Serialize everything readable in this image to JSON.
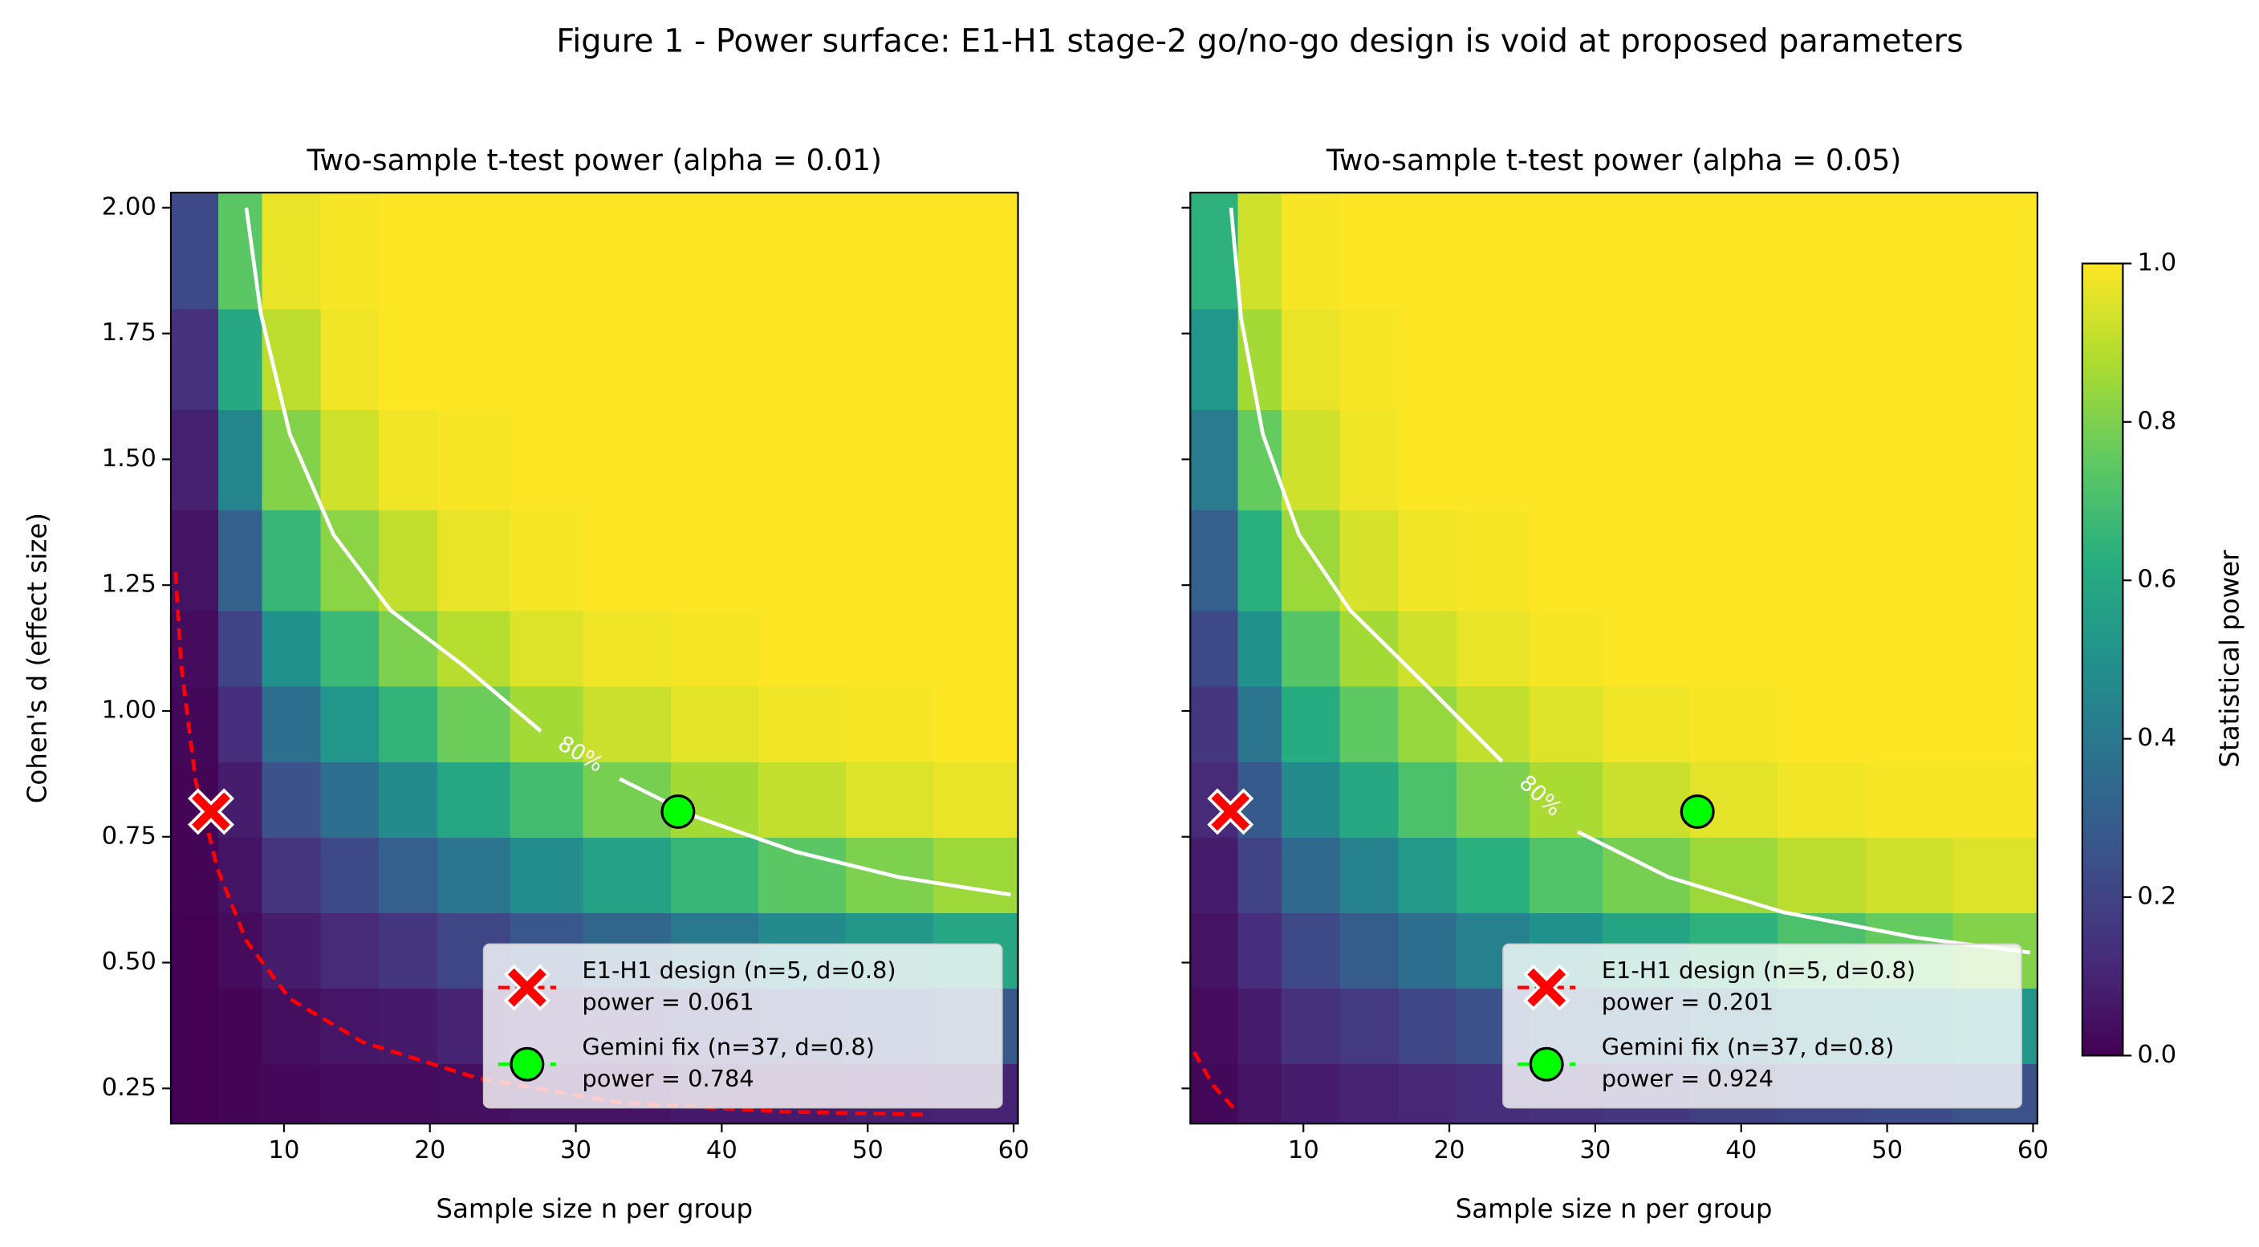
{
  "title": "Figure 1 - Power surface: E1-H1 stage-2 go/no-go design is void at proposed parameters",
  "colorbar": {
    "label": "Statistical power",
    "clim": [
      0,
      1
    ],
    "ticks": [
      {
        "value": 0,
        "label": "0.0"
      },
      {
        "value": 0.2,
        "label": "0.2"
      },
      {
        "value": 0.4,
        "label": "0.4"
      },
      {
        "value": 0.6,
        "label": "0.6"
      },
      {
        "value": 0.8,
        "label": "0.8"
      },
      {
        "value": 1,
        "label": "1.0"
      }
    ],
    "colors": [
      "#440154",
      "#472d7b",
      "#3b528b",
      "#2c728e",
      "#21918c",
      "#28ae80",
      "#5ec962",
      "#addc30",
      "#fde725"
    ]
  },
  "chart_data": [
    {
      "type": "heatmap",
      "title": "Two-sample t-test power  (alpha = 0.01)",
      "x_label": "Sample size n per group",
      "y_label": "Cohen's d (effect size)",
      "xlim": [
        2.25,
        60.3
      ],
      "ylim": [
        0.18,
        2.03
      ],
      "xticks": [
        10,
        20,
        30,
        40,
        50,
        60
      ],
      "yticks": [
        0.25,
        {
          "value": 0.5,
          "label": "0.50"
        },
        0.75,
        {
          "value": 1,
          "label": "1.00"
        },
        1.25,
        {
          "value": 1.5,
          "label": "1.50"
        },
        1.75,
        {
          "value": 2,
          "label": "2.00"
        }
      ],
      "show_ytick_labels": true,
      "x_edges": [
        2.25,
        5.5,
        8.5,
        12.5,
        16.5,
        20.5,
        25.5,
        30.5,
        36.5,
        42.5,
        48.5,
        54.5,
        60.3
      ],
      "y_edges": [
        0.18,
        0.3,
        0.45,
        0.6,
        0.75,
        0.9,
        1.05,
        1.2,
        1.4,
        1.6,
        1.8,
        2.03
      ],
      "values": [
        [
          0.0,
          0.01,
          0.02,
          0.03,
          0.03,
          0.04,
          0.05,
          0.05,
          0.07,
          0.07,
          0.09,
          0.1
        ],
        [
          0.0,
          0.01,
          0.04,
          0.06,
          0.07,
          0.1,
          0.12,
          0.15,
          0.18,
          0.21,
          0.25,
          0.28
        ],
        [
          0.0,
          0.03,
          0.08,
          0.12,
          0.16,
          0.21,
          0.27,
          0.33,
          0.4,
          0.47,
          0.53,
          0.59
        ],
        [
          0.01,
          0.05,
          0.15,
          0.22,
          0.3,
          0.39,
          0.48,
          0.57,
          0.66,
          0.74,
          0.8,
          0.85
        ],
        [
          0.01,
          0.08,
          0.25,
          0.36,
          0.47,
          0.59,
          0.69,
          0.79,
          0.86,
          0.91,
          0.95,
          0.97
        ],
        [
          0.02,
          0.13,
          0.36,
          0.52,
          0.65,
          0.77,
          0.86,
          0.92,
          0.96,
          0.98,
          0.99,
          1.0
        ],
        [
          0.03,
          0.2,
          0.5,
          0.67,
          0.8,
          0.89,
          0.95,
          0.98,
          0.99,
          1.0,
          1.0,
          1.0
        ],
        [
          0.05,
          0.31,
          0.66,
          0.82,
          0.91,
          0.97,
          0.99,
          1.0,
          1.0,
          1.0,
          1.0,
          1.0
        ],
        [
          0.09,
          0.45,
          0.81,
          0.93,
          0.98,
          0.99,
          1.0,
          1.0,
          1.0,
          1.0,
          1.0,
          1.0
        ],
        [
          0.14,
          0.6,
          0.9,
          0.98,
          1.0,
          1.0,
          1.0,
          1.0,
          1.0,
          1.0,
          1.0,
          1.0
        ],
        [
          0.22,
          0.74,
          0.97,
          0.99,
          1.0,
          1.0,
          1.0,
          1.0,
          1.0,
          1.0,
          1.0,
          1.0
        ]
      ],
      "lines": [
        {
          "label": "80%",
          "color": "#ffffff",
          "dashed": false,
          "x": [
            7.42,
            8.41,
            10.4,
            13.4,
            17.3,
            22.3,
            27.6,
            null,
            33.0,
            38.2,
            45.1,
            52.1,
            59.8
          ],
          "y": [
            2.0,
            1.79,
            1.55,
            1.35,
            1.2,
            1.09,
            0.96,
            null,
            0.865,
            0.79,
            0.72,
            0.67,
            0.635
          ]
        },
        {
          "color": "#ff0000",
          "dashed": true,
          "x": [
            2.56,
            2.96,
            3.95,
            5.44,
            7.42,
            10.4,
            15.4,
            23.3,
            33.2,
            44.1,
            54.0
          ],
          "y": [
            1.276,
            1.09,
            0.86,
            0.687,
            0.543,
            0.428,
            0.342,
            0.27,
            0.221,
            0.204,
            0.198
          ]
        }
      ],
      "points": [
        {
          "name": "E1-H1 design (n=5, d=0.8)",
          "power_label": "power = 0.061",
          "x": 5,
          "y": 0.8,
          "color": "#ff0000",
          "marker": "x"
        },
        {
          "name": "Gemini fix (n=37, d=0.8)",
          "power_label": "power = 0.784",
          "x": 37,
          "y": 0.8,
          "color": "#00ff00",
          "marker": "o"
        }
      ]
    },
    {
      "type": "heatmap",
      "title": "Two-sample t-test power  (alpha = 0.05)",
      "x_label": "Sample size n per group",
      "xlim": [
        2.25,
        60.3
      ],
      "ylim": [
        0.18,
        2.03
      ],
      "xticks": [
        10,
        20,
        30,
        40,
        50,
        60
      ],
      "yticks": [
        0.25,
        0.5,
        0.75,
        1,
        1.25,
        1.5,
        1.75,
        2
      ],
      "show_ytick_labels": false,
      "x_edges": [
        2.25,
        5.5,
        8.5,
        12.5,
        16.5,
        20.5,
        25.5,
        30.5,
        36.5,
        42.5,
        48.5,
        54.5,
        60.3
      ],
      "y_edges": [
        0.18,
        0.3,
        0.45,
        0.6,
        0.75,
        0.9,
        1.05,
        1.2,
        1.4,
        1.6,
        1.8,
        2.03
      ],
      "values": [
        [
          0.02,
          0.05,
          0.08,
          0.1,
          0.11,
          0.13,
          0.14,
          0.16,
          0.19,
          0.21,
          0.23,
          0.25
        ],
        [
          0.03,
          0.08,
          0.14,
          0.17,
          0.21,
          0.25,
          0.29,
          0.33,
          0.39,
          0.43,
          0.48,
          0.52
        ],
        [
          0.05,
          0.13,
          0.22,
          0.29,
          0.36,
          0.43,
          0.5,
          0.58,
          0.64,
          0.71,
          0.76,
          0.81
        ],
        [
          0.08,
          0.2,
          0.34,
          0.44,
          0.54,
          0.63,
          0.72,
          0.79,
          0.85,
          0.9,
          0.93,
          0.95
        ],
        [
          0.12,
          0.28,
          0.47,
          0.6,
          0.71,
          0.8,
          0.87,
          0.92,
          0.96,
          0.98,
          0.99,
          0.99
        ],
        [
          0.16,
          0.39,
          0.61,
          0.75,
          0.84,
          0.91,
          0.95,
          0.98,
          0.99,
          1.0,
          1.0,
          1.0
        ],
        [
          0.22,
          0.5,
          0.73,
          0.86,
          0.93,
          0.97,
          0.99,
          1.0,
          1.0,
          1.0,
          1.0,
          1.0
        ],
        [
          0.3,
          0.63,
          0.85,
          0.94,
          0.98,
          0.99,
          1.0,
          1.0,
          1.0,
          1.0,
          1.0,
          1.0
        ],
        [
          0.41,
          0.76,
          0.93,
          0.98,
          1.0,
          1.0,
          1.0,
          1.0,
          1.0,
          1.0,
          1.0,
          1.0
        ],
        [
          0.52,
          0.86,
          0.97,
          0.99,
          1.0,
          1.0,
          1.0,
          1.0,
          1.0,
          1.0,
          1.0,
          1.0
        ],
        [
          0.64,
          0.93,
          0.99,
          1.0,
          1.0,
          1.0,
          1.0,
          1.0,
          1.0,
          1.0,
          1.0,
          1.0
        ]
      ],
      "lines": [
        {
          "label": "80%",
          "color": "#ffffff",
          "dashed": false,
          "x": [
            5.04,
            5.73,
            7.22,
            9.7,
            13.2,
            18.1,
            23.6,
            null,
            28.8,
            35.0,
            42.9,
            51.9,
            59.8
          ],
          "y": [
            2.0,
            1.78,
            1.55,
            1.35,
            1.2,
            1.06,
            0.9,
            null,
            0.76,
            0.67,
            0.6,
            0.55,
            0.52
          ]
        },
        {
          "color": "#ff0000",
          "dashed": true,
          "x": [
            2.52,
            3.81,
            5.44
          ],
          "y": [
            0.322,
            0.256,
            0.204
          ]
        }
      ],
      "points": [
        {
          "name": "E1-H1 design (n=5, d=0.8)",
          "power_label": "power = 0.201",
          "x": 5,
          "y": 0.8,
          "color": "#ff0000",
          "marker": "x"
        },
        {
          "name": "Gemini fix (n=37, d=0.8)",
          "power_label": "power = 0.924",
          "x": 37,
          "y": 0.8,
          "color": "#00ff00",
          "marker": "o"
        }
      ]
    }
  ]
}
